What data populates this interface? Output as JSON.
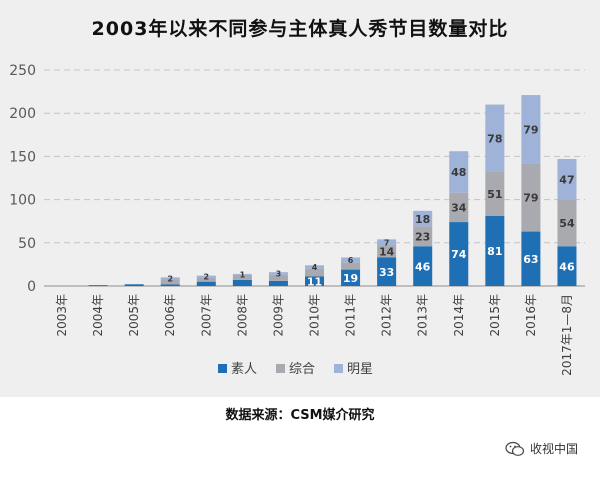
{
  "chart_data": {
    "type": "bar",
    "stacked": true,
    "title": "2003年以来不同参与主体真人秀节目数量对比",
    "categories": [
      "2003年",
      "2004年",
      "2005年",
      "2006年",
      "2007年",
      "2008年",
      "2009年",
      "2010年",
      "2011年",
      "2012年",
      "2013年",
      "2014年",
      "2015年",
      "2016年",
      "2017年1—8月"
    ],
    "series": [
      {
        "name": "素人",
        "color": "#1f6fb5",
        "values": [
          0,
          1,
          2,
          2,
          5,
          7,
          6,
          11,
          19,
          33,
          46,
          74,
          81,
          63,
          46
        ]
      },
      {
        "name": "综合",
        "color": "#a9a9b0",
        "values": [
          0,
          0,
          0,
          6,
          5,
          6,
          7,
          9,
          8,
          14,
          23,
          34,
          51,
          79,
          54
        ]
      },
      {
        "name": "明星",
        "color": "#9fb3d8",
        "values": [
          0,
          0,
          0,
          2,
          2,
          1,
          3,
          4,
          6,
          7,
          18,
          48,
          78,
          79,
          47
        ]
      }
    ],
    "value_labels": [
      [
        null,
        null,
        null,
        null,
        null,
        null,
        null,
        "11",
        "19",
        "33",
        "46",
        "74",
        "81",
        "63",
        "46"
      ],
      [
        null,
        null,
        null,
        null,
        null,
        null,
        null,
        null,
        null,
        "14",
        "23",
        "34",
        "51",
        "79",
        "54"
      ],
      [
        null,
        null,
        null,
        "2",
        "2",
        "1",
        "3",
        "4",
        "6",
        "7",
        "18",
        "48",
        "78",
        "79",
        "47"
      ]
    ],
    "ylim": [
      0,
      250
    ],
    "yticks": [
      0,
      50,
      100,
      150,
      200,
      250
    ],
    "grid": true,
    "legend_position": "bottom"
  },
  "source_text": "数据来源：CSM媒介研究",
  "watermark": {
    "text": "收视中国",
    "icon": "wechat-icon"
  }
}
